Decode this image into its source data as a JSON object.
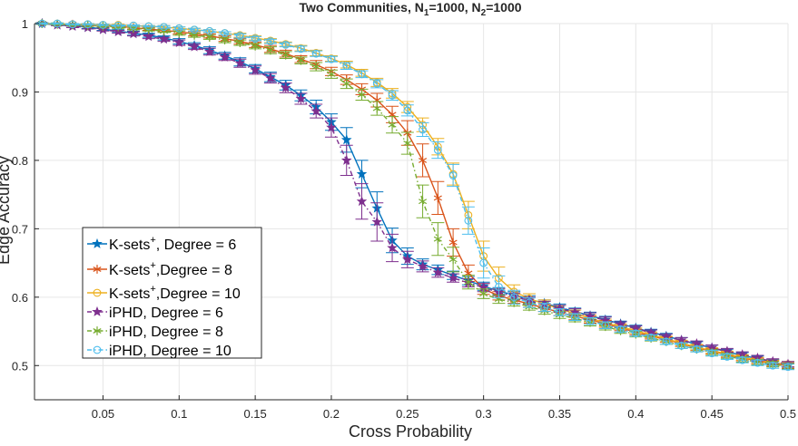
{
  "chart_data": {
    "type": "line",
    "title": "Two Communities, N",
    "title_parts": {
      "main": "Two Communities, N",
      "sub1": "1",
      "mid": "=1000, N",
      "sub2": "2",
      "end": "=1000"
    },
    "xlabel": "Cross Probability",
    "ylabel": "Edge Accuracy",
    "xlim": [
      0.005,
      0.5
    ],
    "ylim": [
      0.45,
      1.0
    ],
    "xticks": [
      0.05,
      0.1,
      0.15,
      0.2,
      0.25,
      0.3,
      0.35,
      0.4,
      0.45,
      0.5
    ],
    "xtick_labels": [
      "0.05",
      "0.1",
      "0.15",
      "0.2",
      "0.25",
      "0.3",
      "0.35",
      "0.4",
      "0.45",
      "0.5"
    ],
    "yticks": [
      0.5,
      0.6,
      0.7,
      0.8,
      0.9,
      1.0
    ],
    "ytick_labels": [
      "0.5",
      "0.6",
      "0.7",
      "0.8",
      "0.9",
      "1"
    ],
    "grid": true,
    "legend_position": "bottom-left",
    "x": [
      0.01,
      0.02,
      0.03,
      0.04,
      0.05,
      0.06,
      0.07,
      0.08,
      0.09,
      0.1,
      0.11,
      0.12,
      0.13,
      0.14,
      0.15,
      0.16,
      0.17,
      0.18,
      0.19,
      0.2,
      0.21,
      0.22,
      0.23,
      0.24,
      0.25,
      0.26,
      0.27,
      0.28,
      0.29,
      0.3,
      0.31,
      0.32,
      0.33,
      0.34,
      0.35,
      0.36,
      0.37,
      0.38,
      0.39,
      0.4,
      0.41,
      0.42,
      0.43,
      0.44,
      0.45,
      0.46,
      0.47,
      0.48,
      0.49,
      0.5
    ],
    "series": [
      {
        "name_main": "K-sets",
        "name_sup": "+",
        "name_rest": ", Degree = 6",
        "color": "#0072bd",
        "dash": "",
        "marker": "star",
        "values": [
          1.0,
          0.998,
          0.997,
          0.995,
          0.992,
          0.989,
          0.986,
          0.983,
          0.979,
          0.974,
          0.968,
          0.961,
          0.953,
          0.944,
          0.934,
          0.922,
          0.91,
          0.895,
          0.878,
          0.856,
          0.83,
          0.78,
          0.73,
          0.683,
          0.66,
          0.648,
          0.64,
          0.632,
          0.624,
          0.616,
          0.609,
          0.603,
          0.597,
          0.591,
          0.585,
          0.579,
          0.573,
          0.567,
          0.561,
          0.555,
          0.549,
          0.543,
          0.537,
          0.531,
          0.526,
          0.52,
          0.515,
          0.51,
          0.505,
          0.5
        ],
        "err": [
          0.001,
          0.001,
          0.001,
          0.002,
          0.002,
          0.002,
          0.003,
          0.003,
          0.003,
          0.004,
          0.004,
          0.005,
          0.005,
          0.006,
          0.006,
          0.007,
          0.007,
          0.008,
          0.01,
          0.012,
          0.018,
          0.02,
          0.024,
          0.018,
          0.012,
          0.008,
          0.007,
          0.006,
          0.006,
          0.006,
          0.005,
          0.005,
          0.005,
          0.005,
          0.005,
          0.005,
          0.005,
          0.005,
          0.004,
          0.004,
          0.004,
          0.004,
          0.004,
          0.004,
          0.004,
          0.004,
          0.004,
          0.004,
          0.004,
          0.004
        ]
      },
      {
        "name_main": "K-sets",
        "name_sup": "+",
        "name_rest": ",Degree = 8",
        "color": "#d95319",
        "dash": "",
        "marker": "asterisk",
        "values": [
          1.0,
          0.999,
          0.999,
          0.998,
          0.997,
          0.996,
          0.994,
          0.992,
          0.99,
          0.988,
          0.985,
          0.982,
          0.978,
          0.974,
          0.969,
          0.963,
          0.956,
          0.948,
          0.94,
          0.93,
          0.918,
          0.904,
          0.888,
          0.867,
          0.84,
          0.8,
          0.745,
          0.68,
          0.635,
          0.612,
          0.602,
          0.596,
          0.59,
          0.584,
          0.578,
          0.572,
          0.567,
          0.561,
          0.555,
          0.549,
          0.543,
          0.538,
          0.532,
          0.526,
          0.521,
          0.516,
          0.511,
          0.507,
          0.503,
          0.5
        ],
        "err": [
          0.001,
          0.001,
          0.001,
          0.001,
          0.001,
          0.002,
          0.002,
          0.002,
          0.002,
          0.003,
          0.003,
          0.003,
          0.004,
          0.004,
          0.004,
          0.005,
          0.005,
          0.005,
          0.006,
          0.006,
          0.007,
          0.008,
          0.01,
          0.012,
          0.018,
          0.024,
          0.024,
          0.02,
          0.012,
          0.008,
          0.006,
          0.005,
          0.005,
          0.005,
          0.005,
          0.005,
          0.005,
          0.005,
          0.004,
          0.004,
          0.004,
          0.004,
          0.004,
          0.004,
          0.004,
          0.004,
          0.004,
          0.004,
          0.004,
          0.004
        ]
      },
      {
        "name_main": "K-sets",
        "name_sup": "+",
        "name_rest": ",Degree = 10",
        "color": "#edb120",
        "dash": "",
        "marker": "circle",
        "values": [
          1.0,
          1.0,
          0.999,
          0.999,
          0.998,
          0.998,
          0.997,
          0.996,
          0.995,
          0.993,
          0.991,
          0.989,
          0.986,
          0.983,
          0.979,
          0.975,
          0.97,
          0.964,
          0.957,
          0.949,
          0.94,
          0.928,
          0.914,
          0.898,
          0.878,
          0.852,
          0.82,
          0.78,
          0.72,
          0.66,
          0.628,
          0.608,
          0.598,
          0.59,
          0.583,
          0.576,
          0.569,
          0.563,
          0.557,
          0.551,
          0.545,
          0.539,
          0.533,
          0.527,
          0.522,
          0.517,
          0.512,
          0.508,
          0.504,
          0.502
        ],
        "err": [
          0.001,
          0.001,
          0.001,
          0.001,
          0.001,
          0.001,
          0.001,
          0.001,
          0.002,
          0.002,
          0.002,
          0.002,
          0.002,
          0.003,
          0.003,
          0.003,
          0.003,
          0.004,
          0.004,
          0.004,
          0.005,
          0.005,
          0.006,
          0.007,
          0.008,
          0.01,
          0.012,
          0.016,
          0.02,
          0.022,
          0.016,
          0.01,
          0.007,
          0.006,
          0.005,
          0.005,
          0.005,
          0.005,
          0.004,
          0.004,
          0.004,
          0.004,
          0.004,
          0.004,
          0.004,
          0.004,
          0.004,
          0.004,
          0.004,
          0.004
        ]
      },
      {
        "name_main": "iPHD, Degree = 6",
        "name_sup": "",
        "name_rest": "",
        "color": "#7e2f8e",
        "dash": "5,3,1.5,3",
        "marker": "star",
        "values": [
          1.0,
          0.998,
          0.996,
          0.994,
          0.991,
          0.988,
          0.985,
          0.981,
          0.977,
          0.972,
          0.966,
          0.959,
          0.951,
          0.942,
          0.932,
          0.92,
          0.906,
          0.89,
          0.872,
          0.848,
          0.8,
          0.74,
          0.71,
          0.672,
          0.655,
          0.645,
          0.636,
          0.628,
          0.621,
          0.614,
          0.607,
          0.601,
          0.595,
          0.589,
          0.583,
          0.578,
          0.572,
          0.566,
          0.56,
          0.554,
          0.548,
          0.542,
          0.537,
          0.532,
          0.526,
          0.521,
          0.516,
          0.511,
          0.506,
          0.502
        ],
        "err": [
          0.001,
          0.001,
          0.002,
          0.002,
          0.002,
          0.002,
          0.003,
          0.003,
          0.003,
          0.004,
          0.004,
          0.005,
          0.005,
          0.006,
          0.006,
          0.007,
          0.007,
          0.008,
          0.01,
          0.014,
          0.022,
          0.026,
          0.028,
          0.02,
          0.012,
          0.008,
          0.007,
          0.006,
          0.006,
          0.006,
          0.005,
          0.005,
          0.005,
          0.005,
          0.005,
          0.005,
          0.005,
          0.005,
          0.004,
          0.004,
          0.004,
          0.004,
          0.004,
          0.004,
          0.004,
          0.004,
          0.004,
          0.004,
          0.004,
          0.004
        ]
      },
      {
        "name_main": "iPHD, Degree = 8",
        "name_sup": "",
        "name_rest": "",
        "color": "#77ac30",
        "dash": "5,3,1.5,3",
        "marker": "asterisk",
        "values": [
          1.0,
          0.999,
          0.998,
          0.997,
          0.996,
          0.995,
          0.993,
          0.991,
          0.989,
          0.986,
          0.983,
          0.98,
          0.976,
          0.972,
          0.967,
          0.961,
          0.954,
          0.946,
          0.937,
          0.926,
          0.912,
          0.896,
          0.876,
          0.852,
          0.825,
          0.74,
          0.685,
          0.655,
          0.622,
          0.605,
          0.597,
          0.592,
          0.586,
          0.58,
          0.574,
          0.569,
          0.563,
          0.557,
          0.551,
          0.546,
          0.54,
          0.535,
          0.529,
          0.524,
          0.519,
          0.514,
          0.509,
          0.505,
          0.502,
          0.499
        ],
        "err": [
          0.001,
          0.001,
          0.001,
          0.001,
          0.001,
          0.002,
          0.002,
          0.002,
          0.002,
          0.003,
          0.003,
          0.003,
          0.004,
          0.004,
          0.004,
          0.005,
          0.005,
          0.005,
          0.006,
          0.006,
          0.007,
          0.008,
          0.01,
          0.012,
          0.016,
          0.024,
          0.024,
          0.018,
          0.01,
          0.007,
          0.006,
          0.005,
          0.005,
          0.005,
          0.005,
          0.005,
          0.005,
          0.005,
          0.004,
          0.004,
          0.004,
          0.004,
          0.004,
          0.004,
          0.004,
          0.004,
          0.004,
          0.004,
          0.004,
          0.004
        ]
      },
      {
        "name_main": "iPHD, Degree = 10",
        "name_sup": "",
        "name_rest": "",
        "color": "#4dbeee",
        "dash": "5,3,1.5,3",
        "marker": "circle",
        "values": [
          1.0,
          1.0,
          0.999,
          0.999,
          0.998,
          0.997,
          0.997,
          0.996,
          0.995,
          0.993,
          0.991,
          0.989,
          0.986,
          0.982,
          0.978,
          0.974,
          0.969,
          0.963,
          0.956,
          0.948,
          0.938,
          0.926,
          0.912,
          0.895,
          0.873,
          0.845,
          0.815,
          0.778,
          0.712,
          0.65,
          0.615,
          0.6,
          0.592,
          0.585,
          0.578,
          0.571,
          0.565,
          0.559,
          0.553,
          0.547,
          0.541,
          0.535,
          0.529,
          0.524,
          0.518,
          0.513,
          0.508,
          0.504,
          0.5,
          0.498
        ],
        "err": [
          0.001,
          0.001,
          0.001,
          0.001,
          0.001,
          0.001,
          0.001,
          0.001,
          0.002,
          0.002,
          0.002,
          0.002,
          0.002,
          0.003,
          0.003,
          0.003,
          0.003,
          0.004,
          0.004,
          0.004,
          0.005,
          0.005,
          0.006,
          0.007,
          0.008,
          0.01,
          0.012,
          0.016,
          0.02,
          0.022,
          0.016,
          0.01,
          0.007,
          0.006,
          0.005,
          0.005,
          0.005,
          0.005,
          0.004,
          0.004,
          0.004,
          0.004,
          0.004,
          0.004,
          0.004,
          0.004,
          0.004,
          0.004,
          0.004,
          0.004
        ]
      }
    ]
  }
}
